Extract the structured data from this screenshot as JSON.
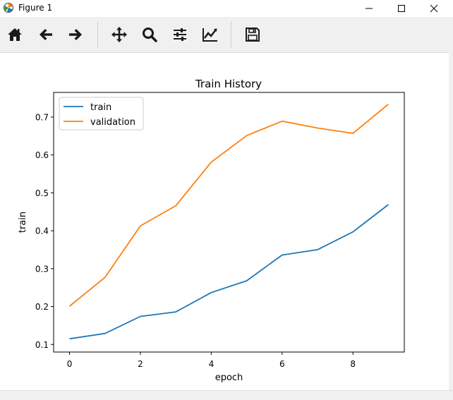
{
  "window": {
    "title": "Figure 1",
    "controls": [
      "minimize-icon",
      "maximize-icon",
      "close-icon"
    ]
  },
  "toolbar": {
    "buttons": [
      {
        "name": "home-button",
        "icon": "home-icon"
      },
      {
        "name": "back-button",
        "icon": "arrow-left-icon"
      },
      {
        "name": "forward-button",
        "icon": "arrow-right-icon"
      },
      {
        "name": "pan-button",
        "icon": "move-icon"
      },
      {
        "name": "zoom-button",
        "icon": "magnifier-icon"
      },
      {
        "name": "subplots-button",
        "icon": "sliders-icon"
      },
      {
        "name": "edit-axes-button",
        "icon": "line-chart-icon"
      },
      {
        "name": "save-button",
        "icon": "floppy-disk-icon"
      }
    ]
  },
  "chart_data": {
    "type": "line",
    "title": "Train History",
    "xlabel": "epoch",
    "ylabel": "train",
    "x": [
      0,
      1,
      2,
      3,
      4,
      5,
      6,
      7,
      8,
      9
    ],
    "xlim": [
      -0.45,
      9.45
    ],
    "ylim": [
      0.08,
      0.765
    ],
    "xticks": [
      0,
      2,
      4,
      6,
      8
    ],
    "yticks": [
      0.1,
      0.2,
      0.3,
      0.4,
      0.5,
      0.6,
      0.7
    ],
    "ytick_labels": [
      "0.1",
      "0.2",
      "0.3",
      "0.4",
      "0.5",
      "0.6",
      "0.7"
    ],
    "grid": false,
    "legend": "top-left",
    "series": [
      {
        "name": "train",
        "color": "#1f77b4",
        "values": [
          0.115,
          0.129,
          0.174,
          0.186,
          0.237,
          0.268,
          0.336,
          0.35,
          0.397,
          0.469
        ]
      },
      {
        "name": "validation",
        "color": "#ff7f0e",
        "values": [
          0.201,
          0.277,
          0.413,
          0.466,
          0.581,
          0.651,
          0.689,
          0.671,
          0.657,
          0.734
        ]
      }
    ]
  }
}
